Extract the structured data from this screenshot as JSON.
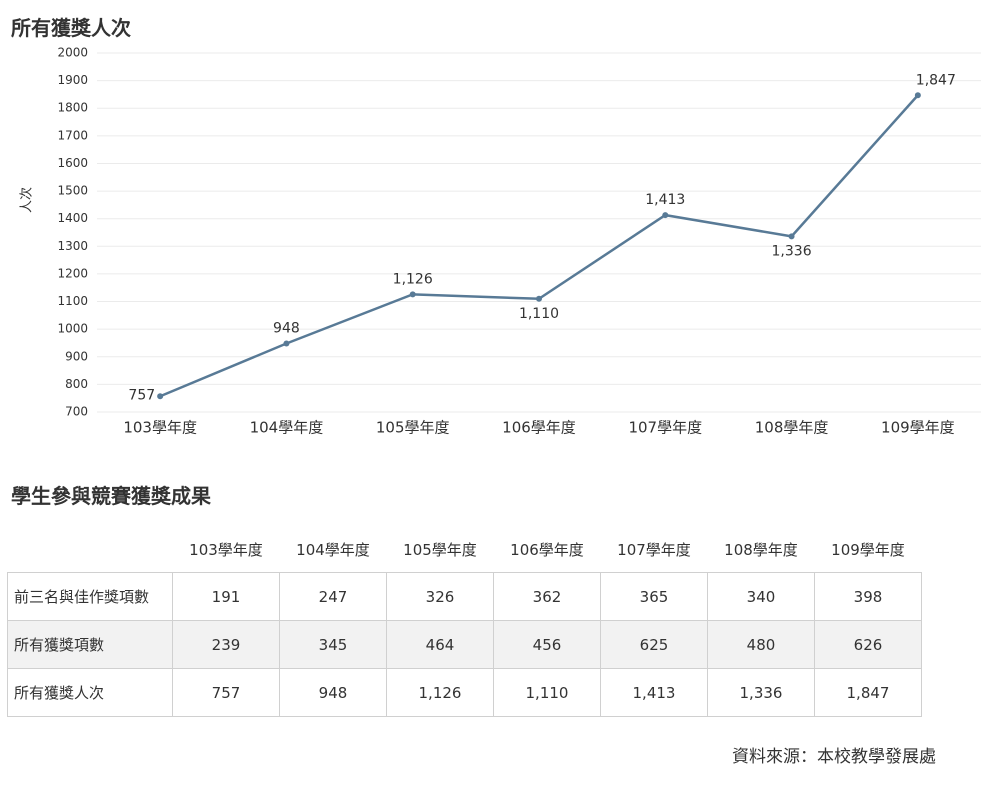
{
  "chart_data": {
    "type": "line",
    "title": "所有獲獎人次",
    "y_label": "人次",
    "categories": [
      "103學年度",
      "104學年度",
      "105學年度",
      "106學年度",
      "107學年度",
      "108學年度",
      "109學年度"
    ],
    "series": [
      {
        "name": "所有獲獎人次",
        "color": "#587a96",
        "values": [
          757,
          948,
          1126,
          1110,
          1413,
          1336,
          1847
        ],
        "value_labels": [
          "757",
          "948",
          "1,126",
          "1,110",
          "1,413",
          "1,336",
          "1,847"
        ]
      }
    ],
    "ylim": [
      700,
      2000
    ],
    "yticks": [
      700,
      800,
      900,
      1000,
      1100,
      1200,
      1300,
      1400,
      1500,
      1600,
      1700,
      1800,
      1900,
      2000
    ],
    "grid": true
  },
  "table": {
    "title": "學生參與競賽獲獎成果",
    "columns": [
      "103學年度",
      "104學年度",
      "105學年度",
      "106學年度",
      "107學年度",
      "108學年度",
      "109學年度"
    ],
    "rows": [
      [
        "前三名與佳作獎項數",
        "191",
        "247",
        "326",
        "362",
        "365",
        "340",
        "398"
      ],
      [
        "所有獲獎項數",
        "239",
        "345",
        "464",
        "456",
        "625",
        "480",
        "626"
      ],
      [
        "所有獲獎人次",
        "757",
        "948",
        "1,126",
        "1,110",
        "1,413",
        "1,336",
        "1,847"
      ]
    ]
  },
  "source": "資料來源：本校教學發展處"
}
